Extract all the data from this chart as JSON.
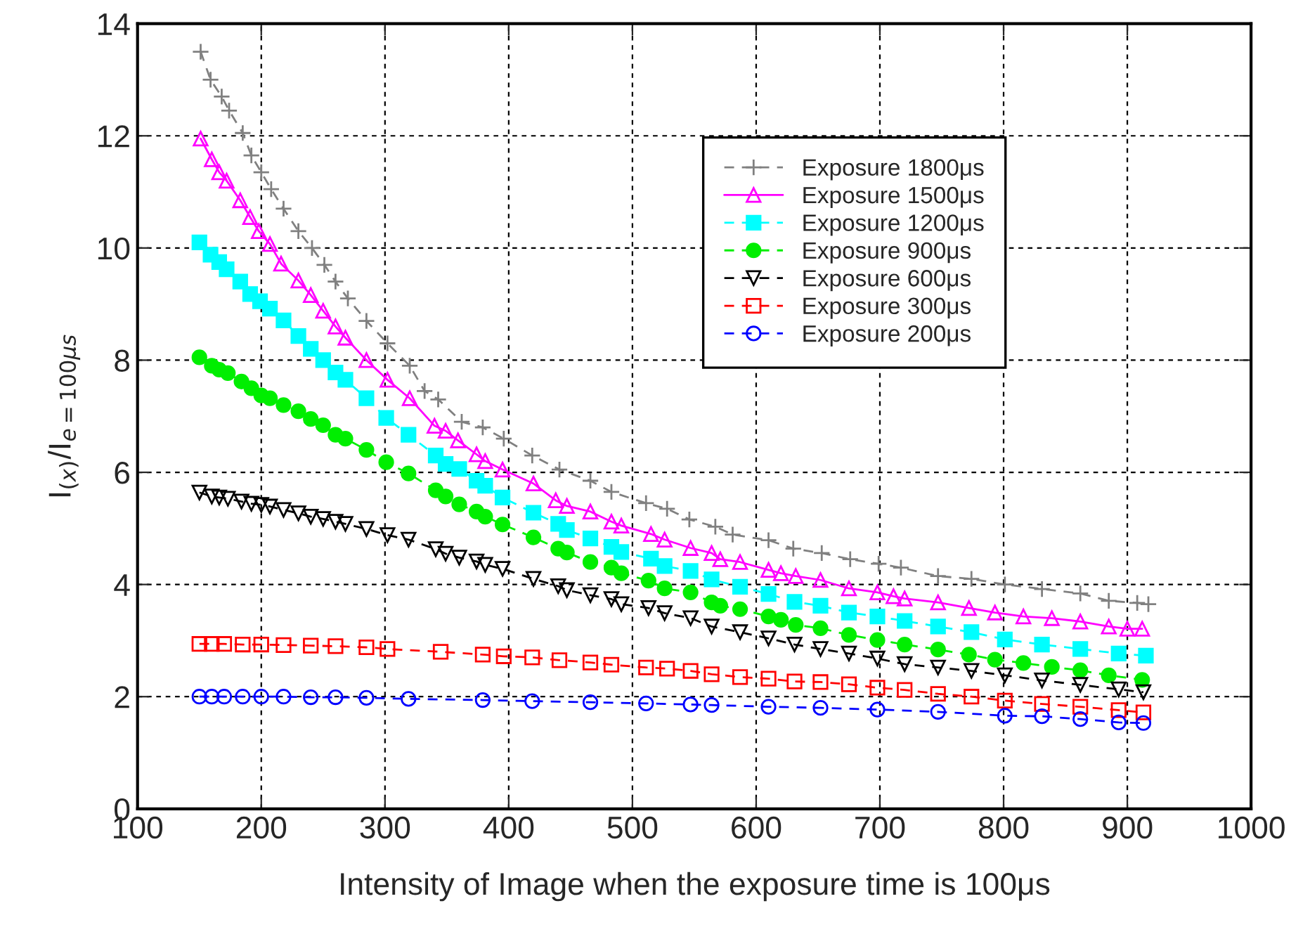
{
  "chart_data": {
    "type": "line",
    "xlabel": "Intensity of Image when the exposure time is 100μs",
    "ylabel": "I$_{(x)}$/I$_{e=100μs}$",
    "xlim": [
      100,
      1000
    ],
    "xticks": [
      100,
      200,
      300,
      400,
      500,
      600,
      700,
      800,
      900,
      1000
    ],
    "ylim": [
      0,
      14
    ],
    "yticks": [
      0,
      2,
      4,
      6,
      8,
      10,
      12,
      14
    ],
    "grid": true,
    "legend": "top right",
    "series": [
      {
        "name": "Exposure 1800μs",
        "color": "#808080",
        "marker": "cross",
        "line_style": "dashed",
        "x": [
          151,
          159,
          168,
          174,
          185,
          192,
          200,
          208,
          218,
          230,
          241,
          251,
          260,
          270,
          285,
          302,
          320,
          332,
          343,
          362,
          379,
          396,
          419,
          441,
          466,
          483,
          511,
          528,
          546,
          567,
          581,
          610,
          630,
          653,
          676,
          699,
          717,
          747,
          774,
          801,
          831,
          862,
          885,
          908,
          917
        ],
        "values": [
          13.5,
          13.0,
          12.7,
          12.45,
          12.05,
          11.65,
          11.35,
          11.05,
          10.7,
          10.3,
          10.0,
          9.7,
          9.4,
          9.1,
          8.7,
          8.3,
          7.9,
          7.45,
          7.3,
          6.9,
          6.8,
          6.6,
          6.3,
          6.05,
          5.85,
          5.65,
          5.45,
          5.35,
          5.16,
          5.03,
          4.89,
          4.79,
          4.64,
          4.56,
          4.45,
          4.37,
          4.3,
          4.15,
          4.1,
          4.0,
          3.92,
          3.84,
          3.71,
          3.67,
          3.65
        ]
      },
      {
        "name": "Exposure 1500μs",
        "color": "#ff00ff",
        "marker": "triangle",
        "line_style": "solid",
        "x": [
          151,
          160,
          166,
          172,
          183,
          191,
          198,
          207,
          216,
          230,
          240,
          250,
          260,
          268,
          285,
          302,
          320,
          340,
          349,
          359,
          374,
          381,
          395,
          420,
          438,
          447,
          466,
          483,
          491,
          515,
          526,
          547,
          564,
          571,
          587,
          610,
          620,
          632,
          652,
          675,
          698,
          711,
          720,
          747,
          772,
          793,
          816,
          839,
          862,
          885,
          900,
          912
        ],
        "values": [
          11.95,
          11.58,
          11.35,
          11.2,
          10.85,
          10.55,
          10.3,
          10.07,
          9.72,
          9.42,
          9.16,
          8.88,
          8.6,
          8.4,
          8.0,
          7.65,
          7.32,
          6.83,
          6.74,
          6.57,
          6.32,
          6.2,
          6.05,
          5.8,
          5.5,
          5.4,
          5.3,
          5.12,
          5.05,
          4.9,
          4.8,
          4.65,
          4.56,
          4.45,
          4.4,
          4.26,
          4.2,
          4.15,
          4.08,
          3.93,
          3.86,
          3.79,
          3.75,
          3.68,
          3.58,
          3.5,
          3.43,
          3.4,
          3.34,
          3.25,
          3.21,
          3.21
        ]
      },
      {
        "name": "Exposure 1200μs",
        "color": "#00ffff",
        "marker": "square_filled",
        "line_style": "dashed",
        "x": [
          150,
          159,
          166,
          172,
          183,
          191,
          199,
          207,
          218,
          230,
          240,
          250,
          260,
          268,
          285,
          301,
          319,
          341,
          349,
          360,
          374,
          381,
          395,
          420,
          440,
          447,
          466,
          483,
          491,
          515,
          526,
          547,
          564,
          587,
          610,
          631,
          652,
          675,
          698,
          720,
          747,
          774,
          801,
          831,
          862,
          893,
          915
        ],
        "values": [
          10.1,
          9.88,
          9.75,
          9.62,
          9.4,
          9.18,
          9.05,
          8.92,
          8.71,
          8.43,
          8.2,
          8.0,
          7.78,
          7.65,
          7.32,
          6.97,
          6.67,
          6.3,
          6.15,
          6.06,
          5.85,
          5.76,
          5.55,
          5.28,
          5.08,
          4.97,
          4.82,
          4.67,
          4.58,
          4.46,
          4.33,
          4.24,
          4.09,
          3.96,
          3.83,
          3.69,
          3.62,
          3.5,
          3.43,
          3.35,
          3.25,
          3.15,
          3.02,
          2.93,
          2.85,
          2.77,
          2.73
        ]
      },
      {
        "name": "Exposure 900μs",
        "color": "#00ee00",
        "marker": "circle_filled",
        "line_style": "dashed",
        "x": [
          150,
          160,
          166,
          173,
          184,
          192,
          200,
          207,
          218,
          230,
          240,
          250,
          260,
          268,
          285,
          301,
          319,
          341,
          349,
          360,
          374,
          381,
          395,
          420,
          440,
          447,
          466,
          483,
          491,
          513,
          526,
          547,
          564,
          571,
          587,
          610,
          620,
          632,
          652,
          675,
          698,
          720,
          747,
          772,
          793,
          816,
          839,
          862,
          885,
          912
        ],
        "values": [
          8.05,
          7.9,
          7.83,
          7.77,
          7.62,
          7.5,
          7.37,
          7.32,
          7.2,
          7.09,
          6.95,
          6.84,
          6.67,
          6.6,
          6.4,
          6.18,
          5.98,
          5.68,
          5.57,
          5.43,
          5.3,
          5.21,
          5.07,
          4.84,
          4.64,
          4.57,
          4.4,
          4.3,
          4.2,
          4.07,
          3.93,
          3.86,
          3.68,
          3.62,
          3.56,
          3.43,
          3.37,
          3.28,
          3.22,
          3.1,
          3.01,
          2.93,
          2.84,
          2.75,
          2.66,
          2.6,
          2.53,
          2.47,
          2.38,
          2.3
        ]
      },
      {
        "name": "Exposure 600μs",
        "color": "#000000",
        "marker": "triangle_down",
        "line_style": "dashed",
        "x": [
          150,
          160,
          166,
          173,
          184,
          192,
          200,
          207,
          218,
          230,
          240,
          250,
          260,
          268,
          285,
          302,
          319,
          341,
          349,
          360,
          374,
          381,
          395,
          420,
          440,
          447,
          466,
          483,
          491,
          513,
          526,
          547,
          564,
          587,
          610,
          631,
          652,
          675,
          698,
          720,
          747,
          774,
          801,
          831,
          862,
          893,
          913
        ],
        "values": [
          5.64,
          5.57,
          5.55,
          5.53,
          5.48,
          5.44,
          5.42,
          5.39,
          5.33,
          5.27,
          5.21,
          5.17,
          5.12,
          5.08,
          4.99,
          4.88,
          4.8,
          4.63,
          4.55,
          4.48,
          4.41,
          4.35,
          4.28,
          4.1,
          3.97,
          3.9,
          3.81,
          3.74,
          3.65,
          3.58,
          3.49,
          3.4,
          3.25,
          3.15,
          3.04,
          2.93,
          2.85,
          2.77,
          2.68,
          2.58,
          2.52,
          2.46,
          2.38,
          2.29,
          2.21,
          2.13,
          2.08
        ]
      },
      {
        "name": "Exposure 300μs",
        "color": "#ff0000",
        "marker": "square",
        "line_style": "dashed",
        "x": [
          150,
          160,
          170,
          185,
          200,
          218,
          240,
          260,
          285,
          302,
          345,
          379,
          396,
          419,
          441,
          466,
          483,
          511,
          528,
          547,
          564,
          587,
          610,
          631,
          652,
          675,
          698,
          720,
          747,
          774,
          801,
          831,
          862,
          893,
          913
        ],
        "values": [
          2.94,
          2.94,
          2.94,
          2.93,
          2.93,
          2.92,
          2.91,
          2.9,
          2.88,
          2.85,
          2.8,
          2.75,
          2.72,
          2.7,
          2.65,
          2.61,
          2.57,
          2.52,
          2.5,
          2.46,
          2.4,
          2.35,
          2.32,
          2.27,
          2.26,
          2.22,
          2.16,
          2.12,
          2.05,
          2.0,
          1.93,
          1.87,
          1.82,
          1.76,
          1.72
        ]
      },
      {
        "name": "Exposure 200μs",
        "color": "#0000ff",
        "marker": "circle",
        "line_style": "dashed",
        "x": [
          150,
          160,
          170,
          185,
          200,
          218,
          240,
          260,
          285,
          319,
          379,
          419,
          466,
          511,
          547,
          564,
          610,
          652,
          698,
          747,
          801,
          831,
          862,
          893,
          913
        ],
        "values": [
          2.0,
          2.0,
          2.0,
          2.0,
          2.0,
          2.0,
          1.99,
          1.99,
          1.98,
          1.96,
          1.94,
          1.92,
          1.9,
          1.88,
          1.86,
          1.85,
          1.82,
          1.8,
          1.77,
          1.73,
          1.66,
          1.65,
          1.6,
          1.54,
          1.53
        ]
      }
    ]
  }
}
